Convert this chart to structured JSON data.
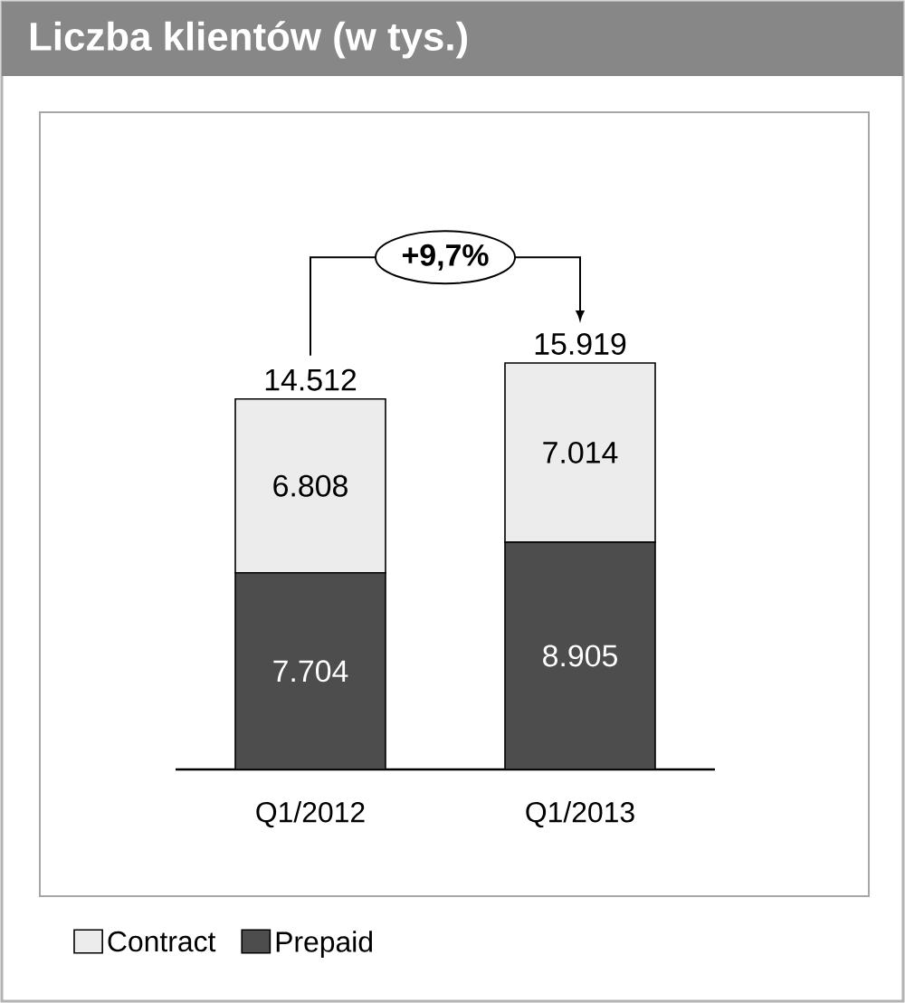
{
  "chart_data": {
    "type": "bar",
    "title": "Liczba klientów (w tys.)",
    "stacked": true,
    "categories": [
      "Q1/2012",
      "Q1/2013"
    ],
    "series": [
      {
        "name": "Prepaid",
        "color": "#4d4d4d",
        "values": [
          7704,
          8905
        ],
        "value_labels": [
          "7.704",
          "8.905"
        ]
      },
      {
        "name": "Contract",
        "color": "#ececec",
        "values": [
          6808,
          7014
        ],
        "value_labels": [
          "6.808",
          "7.014"
        ]
      }
    ],
    "totals": [
      "14.512",
      "15.919"
    ],
    "annotations": [
      "+9,7%"
    ],
    "legend": "bottom left"
  }
}
